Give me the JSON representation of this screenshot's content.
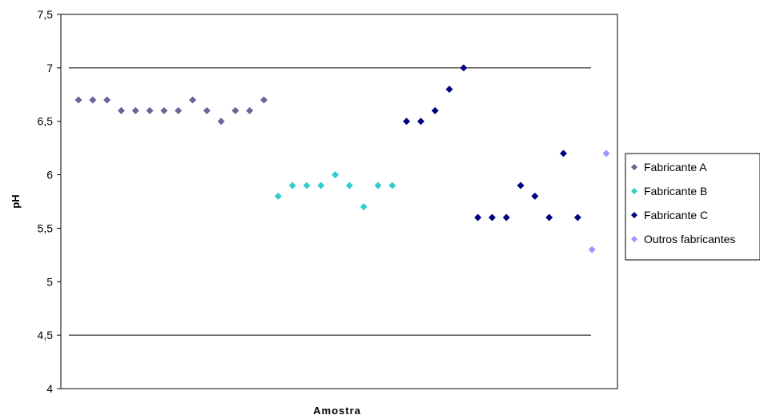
{
  "chart_data": {
    "type": "scatter",
    "title": "",
    "xlabel": "Amostra",
    "ylabel": "pH",
    "ylim": [
      4,
      7.5
    ],
    "yticks": [
      "4",
      "4,5",
      "5",
      "5,5",
      "6",
      "6,5",
      "7",
      "7,5"
    ],
    "ytick_values": [
      4,
      4.5,
      5,
      5.5,
      6,
      6.5,
      7,
      7.5
    ],
    "reference_lines": [
      4.5,
      7
    ],
    "grid": false,
    "legend_position": "right",
    "series": [
      {
        "name": "Fabricante A",
        "color": "#666699",
        "x": [
          1,
          2,
          3,
          4,
          5,
          6,
          7,
          8,
          9,
          10,
          11,
          12,
          13,
          14
        ],
        "y": [
          6.7,
          6.7,
          6.7,
          6.6,
          6.6,
          6.6,
          6.6,
          6.6,
          6.7,
          6.6,
          6.5,
          6.6,
          6.6,
          6.7
        ]
      },
      {
        "name": "Fabricante B",
        "color": "#33CCCC",
        "x": [
          15,
          16,
          17,
          18,
          19,
          20,
          21,
          22,
          23
        ],
        "y": [
          5.8,
          5.9,
          5.9,
          5.9,
          6.0,
          5.9,
          5.7,
          5.9,
          5.9
        ]
      },
      {
        "name": "Fabricante C",
        "color": "#000080",
        "x": [
          24,
          25,
          26,
          27,
          28,
          29,
          30,
          31,
          32,
          33,
          34,
          35,
          36
        ],
        "y": [
          6.5,
          6.5,
          6.6,
          6.8,
          7.0,
          5.6,
          5.6,
          5.6,
          5.9,
          5.8,
          5.6,
          6.2,
          5.6
        ]
      },
      {
        "name": "Outros fabricantes",
        "color": "#9999FF",
        "x": [
          37,
          38
        ],
        "y": [
          5.3,
          6.2
        ]
      }
    ]
  }
}
